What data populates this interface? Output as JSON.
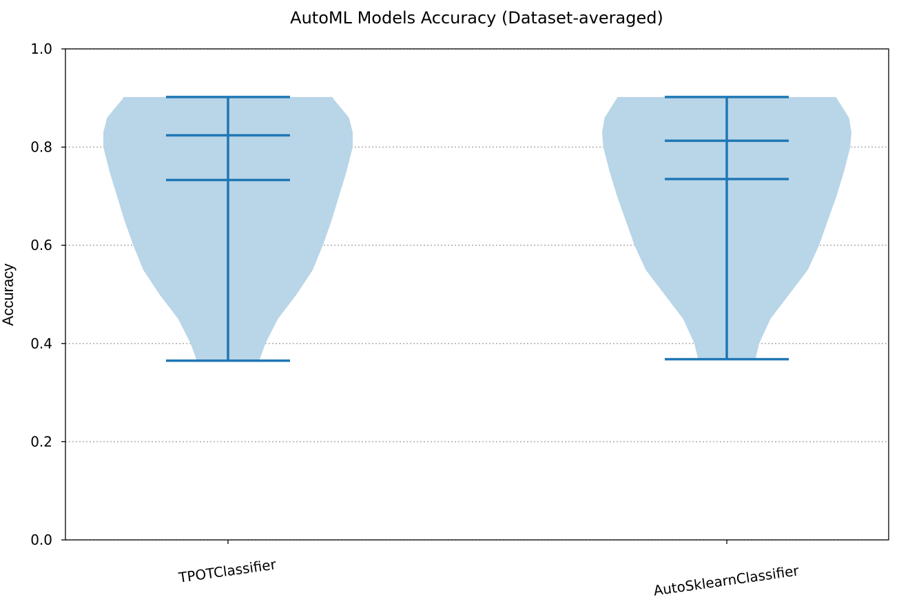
{
  "chart_data": {
    "type": "violin",
    "title": "AutoML Models Accuracy (Dataset-averaged)",
    "xlabel": "",
    "ylabel": "Accuracy",
    "ylim": [
      0.0,
      1.0
    ],
    "yticks": [
      0.0,
      0.2,
      0.4,
      0.6,
      0.8,
      1.0
    ],
    "ytick_labels": [
      "0.0",
      "0.2",
      "0.4",
      "0.6",
      "0.8",
      "1.0"
    ],
    "grid": {
      "axis": "y",
      "style": "dotted"
    },
    "categories": [
      "TPOTClassifier",
      "AutoSklearnClassifier"
    ],
    "series": [
      {
        "category": "TPOTClassifier",
        "min": 0.365,
        "q1": 0.733,
        "median": 0.824,
        "max": 0.902,
        "density_profile": [
          [
            0.365,
            0.25
          ],
          [
            0.4,
            0.3
          ],
          [
            0.45,
            0.4
          ],
          [
            0.5,
            0.55
          ],
          [
            0.55,
            0.68
          ],
          [
            0.6,
            0.76
          ],
          [
            0.65,
            0.83
          ],
          [
            0.7,
            0.89
          ],
          [
            0.75,
            0.95
          ],
          [
            0.8,
            1.0
          ],
          [
            0.83,
            1.0
          ],
          [
            0.86,
            0.97
          ],
          [
            0.9,
            0.84
          ],
          [
            0.902,
            0.84
          ]
        ]
      },
      {
        "category": "AutoSklearnClassifier",
        "min": 0.368,
        "q1": 0.735,
        "median": 0.813,
        "max": 0.902,
        "density_profile": [
          [
            0.368,
            0.23
          ],
          [
            0.4,
            0.26
          ],
          [
            0.45,
            0.35
          ],
          [
            0.5,
            0.5
          ],
          [
            0.55,
            0.65
          ],
          [
            0.6,
            0.74
          ],
          [
            0.65,
            0.81
          ],
          [
            0.7,
            0.88
          ],
          [
            0.75,
            0.94
          ],
          [
            0.8,
            0.99
          ],
          [
            0.83,
            1.0
          ],
          [
            0.86,
            0.98
          ],
          [
            0.9,
            0.88
          ],
          [
            0.902,
            0.88
          ]
        ]
      }
    ],
    "colors": {
      "body": "#b9d5e8",
      "lines": "#1f77b4",
      "grid": "#b0b0b0"
    }
  }
}
